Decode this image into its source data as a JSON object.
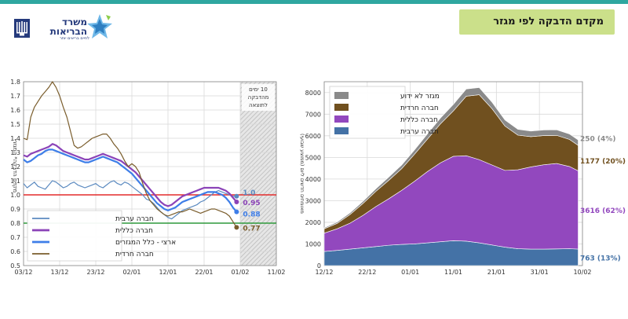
{
  "header": {
    "title": "מקדם הדבקה לפי מגזר",
    "logo_title_line1": "משרד",
    "logo_title_line2": "הבריאות",
    "logo_sub": "לחיים בריאים יותר"
  },
  "colors": {
    "arab": "#5b8ac0",
    "general": "#8b43b8",
    "national": "#3e7ee8",
    "haredi": "#7a5d2c",
    "unknown": "#8c8c8c",
    "arab_area": "#4472a6",
    "general_area": "#9248be",
    "haredi_area": "#70501f",
    "unknown_area": "#8a8a8a",
    "red_line": "#e32b2b",
    "green_line": "#2f9a3b",
    "title_bg": "#cbe08a",
    "topbar": "#2fa7a0"
  },
  "chart_data": [
    {
      "type": "line",
      "ylim": [
        0.5,
        1.8
      ],
      "yticks": [
        "0.5",
        "0.6",
        "0.7",
        "0.8",
        "0.9",
        "1.0",
        "1.1",
        "1.2",
        "1.3",
        "1.4",
        "1.5",
        "1.6",
        "1.7",
        "1.8"
      ],
      "xticks": [
        "03/12",
        "13/12",
        "23/12",
        "02/01",
        "12/01",
        "22/01",
        "01/02",
        "11/02"
      ],
      "xtick_days": [
        0,
        10,
        20,
        30,
        40,
        50,
        60,
        70
      ],
      "xlim_days": [
        0,
        70
      ],
      "ylabel": "מקדם הדבקה* המגזרי",
      "shaded_label_lines": [
        "10 ימים",
        "מהדבקה",
        "לתוצאה"
      ],
      "shaded_from_day": 60,
      "reference_lines": [
        {
          "y": 1.0,
          "color": "red"
        },
        {
          "y": 0.8,
          "color": "green"
        }
      ],
      "legend_position": "bottom-left",
      "x_days": [
        0,
        1,
        2,
        3,
        4,
        5,
        6,
        7,
        8,
        9,
        10,
        11,
        12,
        13,
        14,
        15,
        16,
        17,
        18,
        19,
        20,
        21,
        22,
        23,
        24,
        25,
        26,
        27,
        28,
        29,
        30,
        31,
        32,
        33,
        34,
        35,
        36,
        37,
        38,
        39,
        40,
        41,
        42,
        43,
        44,
        45,
        46,
        47,
        48,
        49,
        50,
        51,
        52,
        53,
        54,
        55,
        56,
        57,
        58,
        59
      ],
      "series": [
        {
          "name": "חברה ערבית",
          "color_key": "arab",
          "values": [
            1.08,
            1.05,
            1.07,
            1.09,
            1.06,
            1.05,
            1.04,
            1.07,
            1.1,
            1.09,
            1.07,
            1.05,
            1.06,
            1.08,
            1.09,
            1.07,
            1.06,
            1.05,
            1.06,
            1.07,
            1.08,
            1.06,
            1.05,
            1.07,
            1.09,
            1.1,
            1.08,
            1.07,
            1.09,
            1.08,
            1.06,
            1.04,
            1.02,
            1.0,
            0.97,
            0.96,
            0.94,
            0.91,
            0.88,
            0.86,
            0.84,
            0.83,
            0.85,
            0.87,
            0.89,
            0.9,
            0.91,
            0.92,
            0.93,
            0.95,
            0.96,
            0.98,
            1.0,
            1.02,
            1.03,
            1.02,
            1.01,
            1.0,
            0.99,
            0.99
          ],
          "end_label": "1.0"
        },
        {
          "name": "חברה כללית",
          "color_key": "general",
          "values": [
            1.28,
            1.27,
            1.29,
            1.3,
            1.31,
            1.32,
            1.33,
            1.34,
            1.36,
            1.35,
            1.33,
            1.31,
            1.3,
            1.29,
            1.28,
            1.27,
            1.26,
            1.25,
            1.25,
            1.26,
            1.27,
            1.28,
            1.29,
            1.28,
            1.27,
            1.26,
            1.25,
            1.24,
            1.22,
            1.2,
            1.18,
            1.16,
            1.13,
            1.1,
            1.07,
            1.04,
            1.01,
            0.98,
            0.95,
            0.93,
            0.92,
            0.93,
            0.95,
            0.97,
            0.99,
            1.0,
            1.01,
            1.02,
            1.03,
            1.04,
            1.05,
            1.05,
            1.05,
            1.05,
            1.05,
            1.04,
            1.03,
            1.01,
            0.98,
            0.95
          ],
          "end_label": "0.95"
        },
        {
          "name": "ארצי - כלל המגזרים",
          "color_key": "national",
          "values": [
            1.25,
            1.23,
            1.24,
            1.26,
            1.28,
            1.29,
            1.31,
            1.32,
            1.32,
            1.31,
            1.3,
            1.29,
            1.28,
            1.27,
            1.26,
            1.25,
            1.24,
            1.23,
            1.23,
            1.24,
            1.25,
            1.26,
            1.27,
            1.26,
            1.25,
            1.24,
            1.23,
            1.21,
            1.19,
            1.17,
            1.15,
            1.12,
            1.09,
            1.06,
            1.03,
            1.0,
            0.97,
            0.94,
            0.92,
            0.9,
            0.89,
            0.9,
            0.91,
            0.93,
            0.95,
            0.96,
            0.97,
            0.98,
            0.99,
            1.0,
            1.01,
            1.02,
            1.02,
            1.02,
            1.01,
            1.0,
            0.98,
            0.95,
            0.91,
            0.88
          ],
          "end_label": "0.88"
        },
        {
          "name": "חברה חרדית",
          "color_key": "haredi",
          "values": [
            1.4,
            1.39,
            1.55,
            1.62,
            1.66,
            1.7,
            1.73,
            1.76,
            1.8,
            1.76,
            1.7,
            1.62,
            1.55,
            1.45,
            1.35,
            1.33,
            1.34,
            1.36,
            1.38,
            1.4,
            1.41,
            1.42,
            1.43,
            1.43,
            1.4,
            1.36,
            1.33,
            1.29,
            1.24,
            1.2,
            1.22,
            1.2,
            1.16,
            1.08,
            1.01,
            0.96,
            0.93,
            0.9,
            0.88,
            0.86,
            0.85,
            0.86,
            0.87,
            0.88,
            0.88,
            0.89,
            0.9,
            0.89,
            0.88,
            0.87,
            0.88,
            0.89,
            0.9,
            0.9,
            0.89,
            0.88,
            0.87,
            0.85,
            0.81,
            0.77
          ],
          "end_label": "0.77"
        }
      ]
    },
    {
      "type": "area",
      "ylim": [
        0,
        8500
      ],
      "yticks": [
        "0",
        "1000",
        "2000",
        "3000",
        "4000",
        "5000",
        "6000",
        "7000",
        "8000"
      ],
      "xticks": [
        "12/12",
        "22/12",
        "01/01",
        "11/01",
        "21/01",
        "31/01",
        "10/02"
      ],
      "xtick_days": [
        0,
        10,
        20,
        30,
        40,
        50,
        60
      ],
      "xlim_days": [
        0,
        60
      ],
      "ylabel": "מאומתים חדשים ליום (ממוצע שבועי)",
      "legend_position": "top-left",
      "x_days": [
        0,
        3,
        6,
        9,
        12,
        15,
        18,
        21,
        24,
        27,
        30,
        33,
        36,
        39,
        42,
        45,
        48,
        51,
        54,
        57,
        59
      ],
      "series": [
        {
          "name": "חברה ערבית",
          "color_key": "arab_area",
          "values": [
            650,
            700,
            760,
            820,
            880,
            940,
            980,
            1000,
            1050,
            1100,
            1150,
            1130,
            1050,
            950,
            850,
            780,
            760,
            760,
            770,
            780,
            763
          ],
          "end_label": "763 (13%)"
        },
        {
          "name": "חברה כללית",
          "color_key": "general_area",
          "values": [
            850,
            1000,
            1200,
            1500,
            1850,
            2150,
            2500,
            2900,
            3300,
            3650,
            3900,
            3950,
            3850,
            3700,
            3550,
            3650,
            3800,
            3900,
            3950,
            3800,
            3616
          ],
          "end_label": "3616 (62%)"
        },
        {
          "name": "חברה חרדית",
          "color_key": "haredi_area",
          "values": [
            200,
            250,
            400,
            550,
            700,
            850,
            1000,
            1250,
            1500,
            1800,
            2100,
            2750,
            3000,
            2600,
            2050,
            1600,
            1400,
            1350,
            1300,
            1250,
            1177
          ],
          "end_label": "1177 (20%)"
        },
        {
          "name": "מגזר לא ידוע",
          "color_key": "unknown_area",
          "values": [
            50,
            60,
            80,
            100,
            120,
            150,
            170,
            200,
            240,
            270,
            300,
            330,
            330,
            300,
            280,
            270,
            260,
            260,
            255,
            252,
            250
          ],
          "end_label": "250 (4%)"
        }
      ]
    }
  ]
}
